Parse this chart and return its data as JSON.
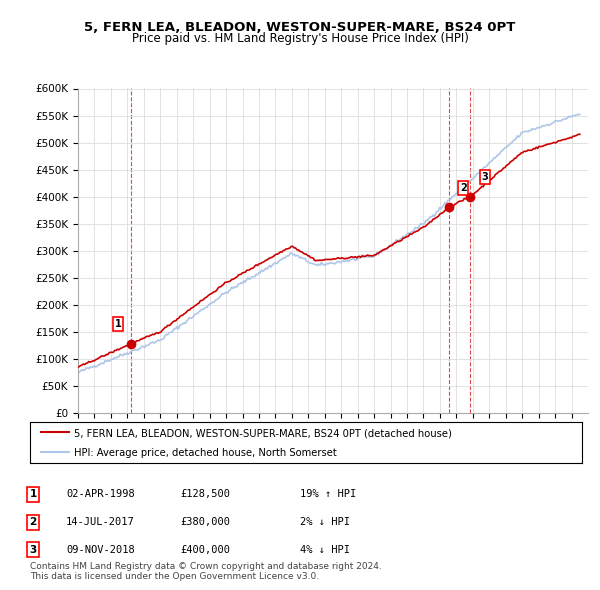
{
  "title": "5, FERN LEA, BLEADON, WESTON-SUPER-MARE, BS24 0PT",
  "subtitle": "Price paid vs. HM Land Registry's House Price Index (HPI)",
  "ylabel_ticks": [
    "£0",
    "£50K",
    "£100K",
    "£150K",
    "£200K",
    "£250K",
    "£300K",
    "£350K",
    "£400K",
    "£450K",
    "£500K",
    "£550K",
    "£600K"
  ],
  "ytick_values": [
    0,
    50000,
    100000,
    150000,
    200000,
    250000,
    300000,
    350000,
    400000,
    450000,
    500000,
    550000,
    600000
  ],
  "xmin": 1995,
  "xmax": 2026,
  "ymin": 0,
  "ymax": 600000,
  "sale_dates": [
    1998.25,
    2017.53,
    2018.85
  ],
  "sale_prices": [
    128500,
    380000,
    400000
  ],
  "sale_labels": [
    "1",
    "2",
    "3"
  ],
  "hpi_color": "#aec6e8",
  "price_color": "#cc0000",
  "sale_marker_color": "#cc0000",
  "vline_color": "#cc0000",
  "legend_line1": "5, FERN LEA, BLEADON, WESTON-SUPER-MARE, BS24 0PT (detached house)",
  "legend_line2": "HPI: Average price, detached house, North Somerset",
  "table_entries": [
    {
      "num": "1",
      "date": "02-APR-1998",
      "price": "£128,500",
      "hpi": "19% ↑ HPI"
    },
    {
      "num": "2",
      "date": "14-JUL-2017",
      "price": "£380,000",
      "hpi": "2% ↓ HPI"
    },
    {
      "num": "3",
      "date": "09-NOV-2018",
      "price": "£400,000",
      "hpi": "4% ↓ HPI"
    }
  ],
  "footer": "Contains HM Land Registry data © Crown copyright and database right 2024.\nThis data is licensed under the Open Government Licence v3.0.",
  "background_color": "#ffffff",
  "grid_color": "#dddddd"
}
